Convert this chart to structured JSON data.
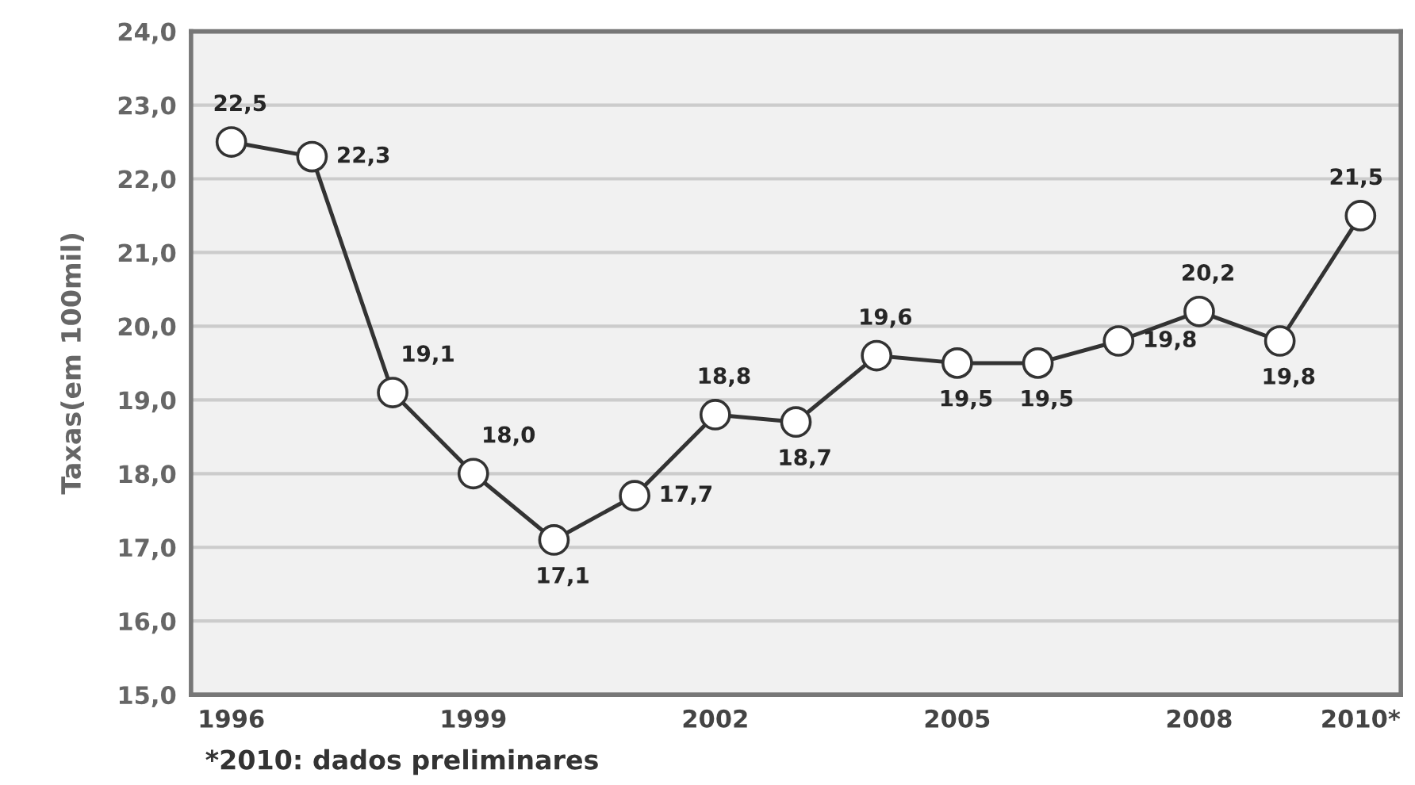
{
  "chart_data": {
    "type": "line",
    "ylabel": "Taxas(em 100mil)",
    "categories": [
      "1996",
      null,
      null,
      "1999",
      null,
      null,
      "2002",
      null,
      null,
      "2005",
      null,
      null,
      "2008",
      null,
      "2010*"
    ],
    "series": [
      {
        "color": "#333333",
        "values": [
          22.5,
          22.3,
          19.1,
          18.0,
          17.1,
          17.7,
          18.8,
          18.7,
          19.6,
          19.5,
          19.5,
          19.8,
          20.2,
          19.8,
          21.5
        ],
        "value_labels": [
          "22,5",
          "22,3",
          "19,1",
          "18,0",
          "17,1",
          "17,7",
          "18,8",
          "18,7",
          "19,6",
          "19,5",
          "19,5",
          "19,8",
          "20,2",
          "19,8",
          "21,5"
        ]
      }
    ],
    "marker": "circle",
    "line_style": "solid",
    "grid": "y",
    "legend": false,
    "ylim": [
      15,
      24
    ],
    "yticks": [
      {
        "value": 15,
        "label": "15,0"
      },
      {
        "value": 16,
        "label": "16,0"
      },
      {
        "value": 17,
        "label": "17,0"
      },
      {
        "value": 18,
        "label": "18,0"
      },
      {
        "value": 19,
        "label": "19,0"
      },
      {
        "value": 20,
        "label": "20,0"
      },
      {
        "value": 21,
        "label": "21,0"
      },
      {
        "value": 22,
        "label": "22,0"
      },
      {
        "value": 23,
        "label": "23,0"
      },
      {
        "value": 24,
        "label": "24,0"
      }
    ],
    "annotations": [
      "*2010: dados preliminares"
    ]
  }
}
